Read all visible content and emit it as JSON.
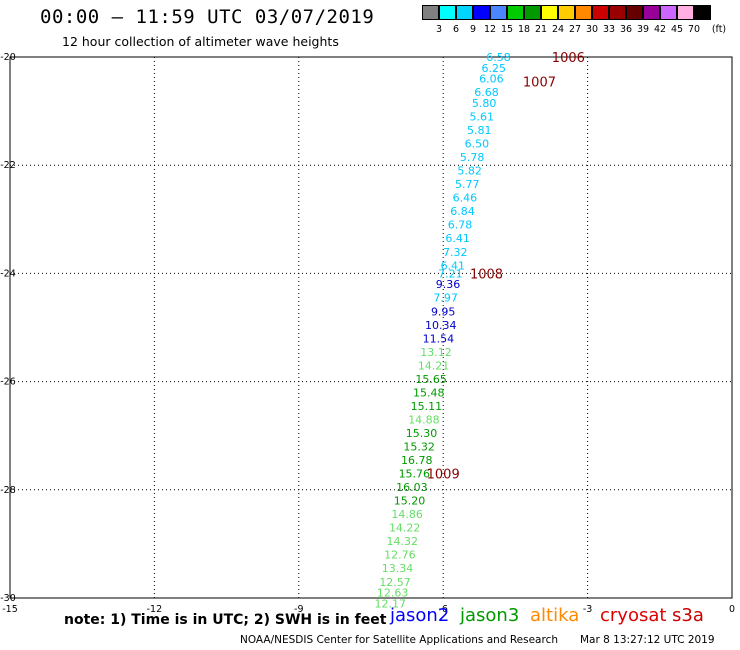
{
  "header": {
    "title": "00:00 – 11:59 UTC 03/07/2019",
    "subtitle": "12 hour collection of altimeter wave heights"
  },
  "colorbar": {
    "colors": [
      "#808080",
      "#00ffff",
      "#00d4ff",
      "#0000ff",
      "#4a86ff",
      "#00cc00",
      "#009900",
      "#ffff00",
      "#ffcc00",
      "#ff8800",
      "#cc0000",
      "#990000",
      "#660000",
      "#990099",
      "#cc66ff",
      "#ffb0e0",
      "#000000"
    ],
    "labels": [
      "3",
      "6",
      "9",
      "12",
      "15",
      "18",
      "21",
      "24",
      "27",
      "30",
      "33",
      "36",
      "39",
      "42",
      "45",
      "70"
    ],
    "unit": "(ft)"
  },
  "chart_data": {
    "type": "scatter",
    "xlim": [
      -15,
      0
    ],
    "ylim": [
      -30,
      -20
    ],
    "x_ticks": [
      "-15",
      "-12",
      "-9",
      "-6",
      "-3",
      "0"
    ],
    "y_ticks": [
      "-20",
      "-22",
      "-24",
      "-26",
      "-28",
      "-30"
    ],
    "x_tick_values": [
      -15,
      -12,
      -9,
      -6,
      -3,
      0
    ],
    "y_tick_values": [
      -20,
      -22,
      -24,
      -26,
      -28,
      -30
    ],
    "grid": true,
    "wave_heights": [
      {
        "x": -4.85,
        "y": -20.0,
        "label": "6.58",
        "color": "#00c8ff"
      },
      {
        "x": -4.95,
        "y": -20.2,
        "label": "6.25",
        "color": "#00c8ff"
      },
      {
        "x": -5.0,
        "y": -20.4,
        "label": "6.06",
        "color": "#00c8ff"
      },
      {
        "x": -5.1,
        "y": -20.65,
        "label": "6.68",
        "color": "#00c8ff"
      },
      {
        "x": -5.15,
        "y": -20.85,
        "label": "5.80",
        "color": "#00c8ff"
      },
      {
        "x": -5.2,
        "y": -21.1,
        "label": "5.61",
        "color": "#00c8ff"
      },
      {
        "x": -5.25,
        "y": -21.35,
        "label": "5.81",
        "color": "#00c8ff"
      },
      {
        "x": -5.3,
        "y": -21.6,
        "label": "6.50",
        "color": "#00c8ff"
      },
      {
        "x": -5.4,
        "y": -21.85,
        "label": "5.78",
        "color": "#00c8ff"
      },
      {
        "x": -5.45,
        "y": -22.1,
        "label": "5.82",
        "color": "#00c8ff"
      },
      {
        "x": -5.5,
        "y": -22.35,
        "label": "5.77",
        "color": "#00c8ff"
      },
      {
        "x": -5.55,
        "y": -22.6,
        "label": "6.46",
        "color": "#00c8ff"
      },
      {
        "x": -5.6,
        "y": -22.85,
        "label": "6.84",
        "color": "#00c8ff"
      },
      {
        "x": -5.65,
        "y": -23.1,
        "label": "6.78",
        "color": "#00c8ff"
      },
      {
        "x": -5.7,
        "y": -23.35,
        "label": "6.41",
        "color": "#00c8ff"
      },
      {
        "x": -5.75,
        "y": -23.6,
        "label": "7.32",
        "color": "#00c8ff"
      },
      {
        "x": -5.8,
        "y": -23.85,
        "label": "6.41",
        "color": "#00c8ff"
      },
      {
        "x": -5.85,
        "y": -24.0,
        "label": "7.21",
        "color": "#00c8ff"
      },
      {
        "x": -5.9,
        "y": -24.2,
        "label": "9.36",
        "color": "#0000cc"
      },
      {
        "x": -5.95,
        "y": -24.45,
        "label": "7.97",
        "color": "#00c8ff"
      },
      {
        "x": -6.0,
        "y": -24.7,
        "label": "9.95",
        "color": "#0000cc"
      },
      {
        "x": -6.05,
        "y": -24.95,
        "label": "10.34",
        "color": "#0000cc"
      },
      {
        "x": -6.1,
        "y": -25.2,
        "label": "11.54",
        "color": "#0000cc"
      },
      {
        "x": -6.15,
        "y": -25.45,
        "label": "13.12",
        "color": "#66dd66"
      },
      {
        "x": -6.2,
        "y": -25.7,
        "label": "14.21",
        "color": "#66dd66"
      },
      {
        "x": -6.25,
        "y": -25.95,
        "label": "15.65",
        "color": "#009900"
      },
      {
        "x": -6.3,
        "y": -26.2,
        "label": "15.48",
        "color": "#009900"
      },
      {
        "x": -6.35,
        "y": -26.45,
        "label": "15.11",
        "color": "#009900"
      },
      {
        "x": -6.4,
        "y": -26.7,
        "label": "14.88",
        "color": "#66dd66"
      },
      {
        "x": -6.45,
        "y": -26.95,
        "label": "15.30",
        "color": "#009900"
      },
      {
        "x": -6.5,
        "y": -27.2,
        "label": "15.32",
        "color": "#009900"
      },
      {
        "x": -6.55,
        "y": -27.45,
        "label": "16.78",
        "color": "#009900"
      },
      {
        "x": -6.6,
        "y": -27.7,
        "label": "15.76",
        "color": "#009900"
      },
      {
        "x": -6.65,
        "y": -27.95,
        "label": "16.03",
        "color": "#009900"
      },
      {
        "x": -6.7,
        "y": -28.2,
        "label": "15.20",
        "color": "#009900"
      },
      {
        "x": -6.75,
        "y": -28.45,
        "label": "14.86",
        "color": "#66dd66"
      },
      {
        "x": -6.8,
        "y": -28.7,
        "label": "14.22",
        "color": "#66dd66"
      },
      {
        "x": -6.85,
        "y": -28.95,
        "label": "14.32",
        "color": "#66dd66"
      },
      {
        "x": -6.9,
        "y": -29.2,
        "label": "12.76",
        "color": "#66dd66"
      },
      {
        "x": -6.95,
        "y": -29.45,
        "label": "13.34",
        "color": "#66dd66"
      },
      {
        "x": -7.0,
        "y": -29.7,
        "label": "12.57",
        "color": "#66dd66"
      },
      {
        "x": -7.05,
        "y": -29.9,
        "label": "12.63",
        "color": "#66dd66"
      },
      {
        "x": -7.1,
        "y": -30.1,
        "label": "12.17",
        "color": "#66dd66"
      }
    ],
    "pressure_labels": [
      {
        "x": -3.4,
        "y": -20.0,
        "label": "1006",
        "color": "#880000"
      },
      {
        "x": -4.0,
        "y": -20.45,
        "label": "1007",
        "color": "#880000"
      },
      {
        "x": -5.1,
        "y": -24.0,
        "label": "1008",
        "color": "#880000"
      },
      {
        "x": -6.0,
        "y": -27.7,
        "label": "1009",
        "color": "#880000"
      }
    ]
  },
  "footer": {
    "note": "note: 1) Time is in UTC; 2) SWH is in feet",
    "satellites": [
      {
        "name": "jason2",
        "color": "#0000ff"
      },
      {
        "name": "jason3",
        "color": "#009900"
      },
      {
        "name": "altika",
        "color": "#ff8800"
      },
      {
        "name": "cryosat",
        "color": "#dd0000"
      },
      {
        "name": "s3a",
        "color": "#cc0000"
      }
    ],
    "credit": "NOAA/NESDIS Center for Satellite Applications and Research",
    "timestamp": "Mar  8 13:27:12 UTC 2019"
  }
}
